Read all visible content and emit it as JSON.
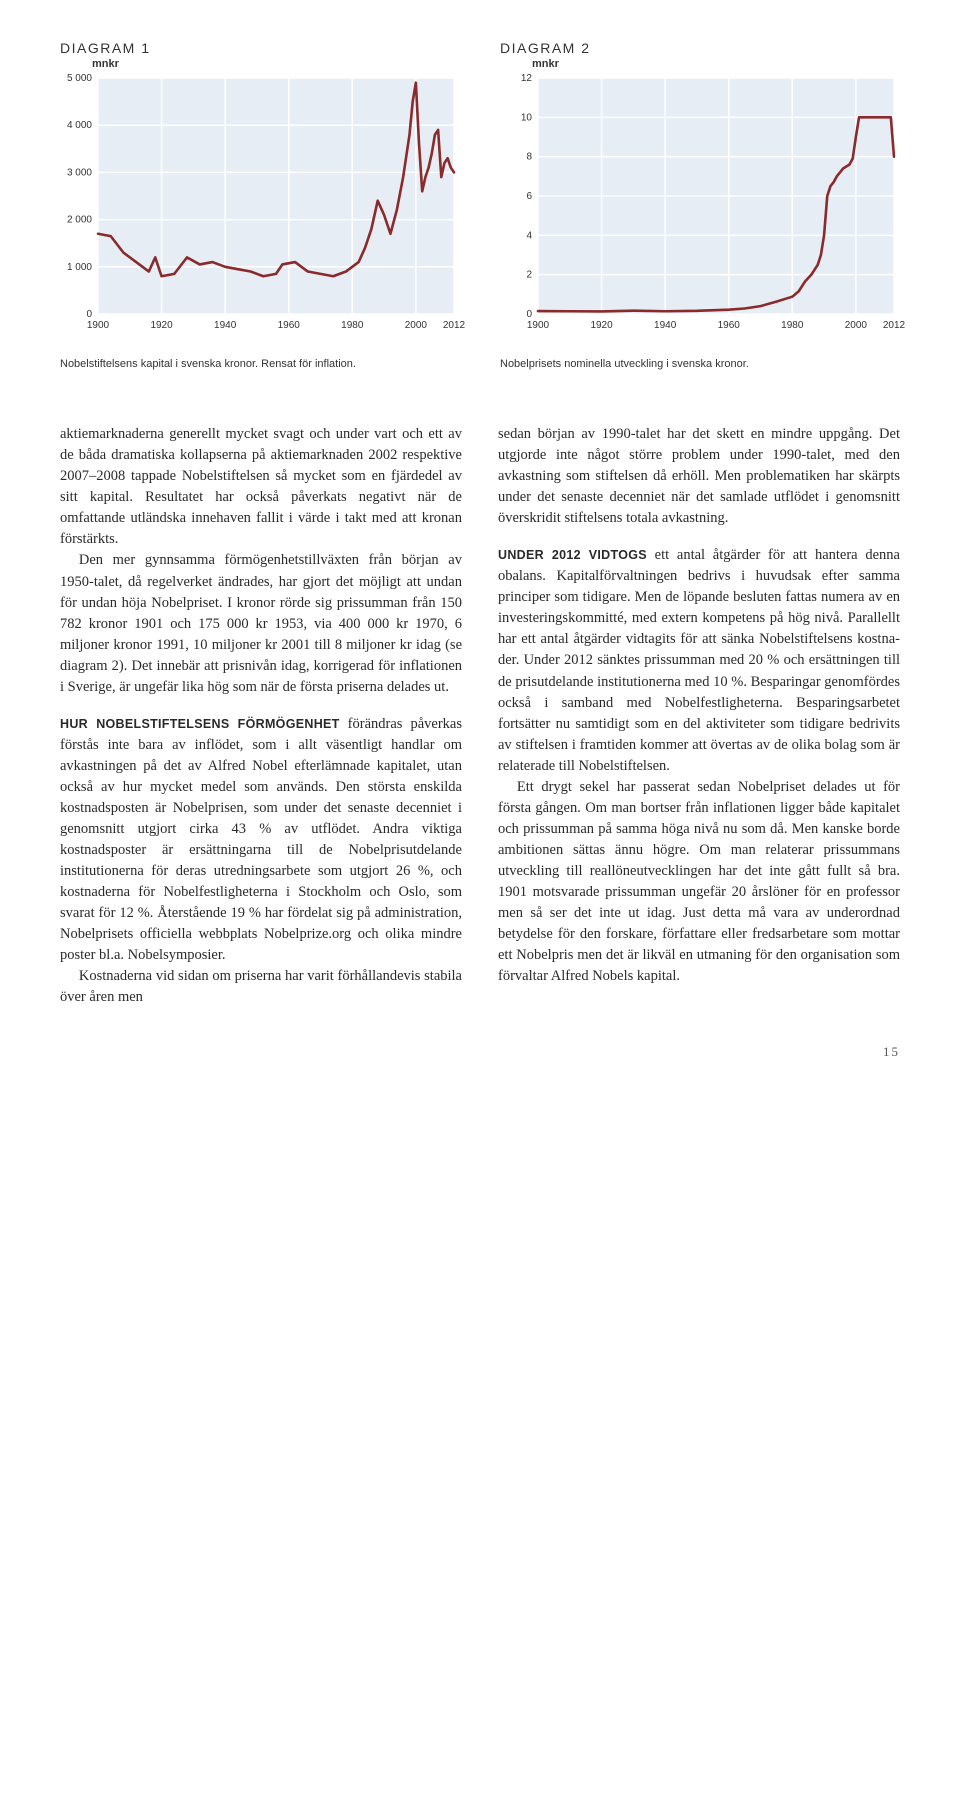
{
  "chart1": {
    "title": "DIAGRAM 1",
    "unit": "mnkr",
    "caption": "Nobelstiftelsens kapital i svenska kronor. Rensat för inflation.",
    "type": "line",
    "background_color": "#e6edf5",
    "grid_color": "#ffffff",
    "line_color": "#8a2a2a",
    "line_width": 2.6,
    "x_ticks": [
      "1900",
      "1920",
      "1940",
      "1960",
      "1980",
      "2000",
      "2012"
    ],
    "y_ticks": [
      "0",
      "1 000",
      "2 000",
      "3 000",
      "4 000",
      "5 000"
    ],
    "ylim": [
      0,
      5000
    ],
    "xlim": [
      1900,
      2012
    ],
    "tick_fontsize": 10,
    "series_xy": [
      [
        1900,
        1700
      ],
      [
        1904,
        1650
      ],
      [
        1908,
        1300
      ],
      [
        1912,
        1100
      ],
      [
        1916,
        900
      ],
      [
        1918,
        1200
      ],
      [
        1920,
        800
      ],
      [
        1924,
        850
      ],
      [
        1928,
        1200
      ],
      [
        1932,
        1050
      ],
      [
        1936,
        1100
      ],
      [
        1940,
        1000
      ],
      [
        1944,
        950
      ],
      [
        1948,
        900
      ],
      [
        1952,
        800
      ],
      [
        1956,
        850
      ],
      [
        1958,
        1050
      ],
      [
        1962,
        1100
      ],
      [
        1966,
        900
      ],
      [
        1970,
        850
      ],
      [
        1974,
        800
      ],
      [
        1978,
        900
      ],
      [
        1982,
        1100
      ],
      [
        1984,
        1400
      ],
      [
        1986,
        1800
      ],
      [
        1988,
        2400
      ],
      [
        1990,
        2100
      ],
      [
        1992,
        1700
      ],
      [
        1994,
        2200
      ],
      [
        1996,
        2900
      ],
      [
        1998,
        3800
      ],
      [
        1999,
        4500
      ],
      [
        2000,
        4900
      ],
      [
        2001,
        3600
      ],
      [
        2002,
        2600
      ],
      [
        2003,
        2900
      ],
      [
        2004,
        3100
      ],
      [
        2005,
        3400
      ],
      [
        2006,
        3800
      ],
      [
        2007,
        3900
      ],
      [
        2008,
        2900
      ],
      [
        2009,
        3200
      ],
      [
        2010,
        3300
      ],
      [
        2011,
        3100
      ],
      [
        2012,
        3000
      ]
    ]
  },
  "chart2": {
    "title": "DIAGRAM 2",
    "unit": "mnkr",
    "caption": "Nobelprisets nominella utveckling i svenska kronor.",
    "type": "line",
    "background_color": "#e6edf5",
    "grid_color": "#ffffff",
    "line_color": "#8a2a2a",
    "line_width": 2.6,
    "x_ticks": [
      "1900",
      "1920",
      "1940",
      "1960",
      "1980",
      "2000",
      "2012"
    ],
    "y_ticks": [
      "0",
      "2",
      "4",
      "6",
      "8",
      "10",
      "12"
    ],
    "ylim": [
      0,
      12
    ],
    "xlim": [
      1900,
      2012
    ],
    "tick_fontsize": 10,
    "series_xy": [
      [
        1900,
        0.15
      ],
      [
        1910,
        0.14
      ],
      [
        1920,
        0.13
      ],
      [
        1930,
        0.17
      ],
      [
        1940,
        0.14
      ],
      [
        1950,
        0.16
      ],
      [
        1960,
        0.22
      ],
      [
        1965,
        0.28
      ],
      [
        1970,
        0.4
      ],
      [
        1975,
        0.63
      ],
      [
        1980,
        0.88
      ],
      [
        1982,
        1.15
      ],
      [
        1984,
        1.65
      ],
      [
        1986,
        2.0
      ],
      [
        1988,
        2.5
      ],
      [
        1989,
        3.0
      ],
      [
        1990,
        4.0
      ],
      [
        1991,
        6.0
      ],
      [
        1992,
        6.5
      ],
      [
        1993,
        6.7
      ],
      [
        1994,
        7.0
      ],
      [
        1995,
        7.2
      ],
      [
        1996,
        7.4
      ],
      [
        1997,
        7.5
      ],
      [
        1998,
        7.6
      ],
      [
        1999,
        7.9
      ],
      [
        2000,
        9.0
      ],
      [
        2001,
        10.0
      ],
      [
        2002,
        10.0
      ],
      [
        2003,
        10.0
      ],
      [
        2004,
        10.0
      ],
      [
        2005,
        10.0
      ],
      [
        2006,
        10.0
      ],
      [
        2007,
        10.0
      ],
      [
        2008,
        10.0
      ],
      [
        2009,
        10.0
      ],
      [
        2010,
        10.0
      ],
      [
        2011,
        10.0
      ],
      [
        2012,
        8.0
      ]
    ]
  },
  "body": {
    "col1": {
      "p1": "aktiemarknaderna generellt mycket svagt och under vart och ett av de båda dramatiska kol­lapserna på aktiemarknaden 2002 respektive 2007–2008 tappade Nobelstiftelsen så mycket som en fjärdedel av sitt kapital. Resultatet har också påverkats negativt när de omfattande utländska innehaven fallit i värde i takt med att kronan förstärkts.",
      "p2": "Den mer gynnsamma förmögenhetstillväx­ten från början av 1950-talet, då regelverket ändrades, har gjort det möjligt att undan för undan höja Nobelpriset. I kronor rörde sig prissumman från 150 782 kronor 1901 och 175 000 kr 1953, via 400 000 kr 1970, 6 miljoner kronor 1991, 10 miljoner kr 2001 till 8 miljoner kr idag (se diagram 2). Det innebär att prisnivån idag, korrigerad för inflationen i Sverige, är ungefär lika hög som när de första priserna delades ut.",
      "runin3": "HUR NOBELSTIFTELSENS FÖRMÖGENHET",
      "p3": " förändras påverkas förstås inte bara av inflödet, som i allt väsentligt handlar om avkastningen på det av Alfred Nobel efterlämnade kapitalet, utan också av hur mycket medel som används. Den största enskilda kostnadsposten är Nobelprisen, som under det senaste decenniet i genomsnitt utgjort cirka 43 % av utflödet. Andra viktiga kostnadsposter är ersättningarna till de Nobel­prisutdelande institutionerna för deras utred­ningsarbete som utgjort 26 %, och kostnaderna för Nobelfestligheterna i Stockholm och Oslo, som svarat för 12 %. Återstående 19 % har fördelat sig på administration, Nobelprisets officiella webbplats Nobelprize.org och olika mindre poster bl.a. Nobelsymposier.",
      "p4": "Kostnaderna vid sidan om priserna har varit förhållandevis stabila över åren men"
    },
    "col2": {
      "p1": "sedan början av 1990-talet har det skett en mindre uppgång. Det utgjorde inte något större problem under 1990-talet, med den avkastning som stiftelsen då erhöll. Men problematiken har skärpts under det senaste decenniet när det samlade utflödet i genomsnitt överskridit stiftel­sens totala avkastning.",
      "runin2": "UNDER 2012 VIDTOGS",
      "p2": " ett antal åtgärder för att hantera denna obalans. Kapitalförvaltningen bedrivs i huvudsak efter samma principer som tidigare. Men de löpande besluten fattas numera av en investeringskommitté, med extern kompe­tens på hög nivå. Parallellt har ett antal åtgärder vidtagits för att sänka Nobelstiftelsens kostna­der. Under 2012 sänktes prissumman med 20 % och ersättningen till de prisutdelande institu­tionerna med 10 %. Besparingar genomfördes också i samband med Nobelfestligheterna. Besparingsarbetet fortsätter nu samtidigt som en del aktiviteter som tidigare bedrivits av stiftel­sen i framtiden kommer att övertas av de olika bolag som är relaterade till Nobelstiftelsen.",
      "p3": "Ett drygt sekel har passerat sedan Nobel­priset delades ut för första gången. Om man bortser från inflationen ligger både kapitalet och prissumman på samma höga nivå nu som då. Men kanske borde ambitionen sättas ännu högre. Om man relaterar prissummans utveckling till reallöneutvecklingen har det inte gått fullt så bra. 1901 motsvarade prissumman ungefär 20 årslöner för en professor men så ser det inte ut idag. Just detta må vara av under­ordnad betydelse för den forskare, författare eller fredsarbetare som mottar ett Nobelpris men det är likväl en utmaning för den organisa­tion som förvaltar Alfred Nobels kapital."
    }
  },
  "page_number": "15"
}
